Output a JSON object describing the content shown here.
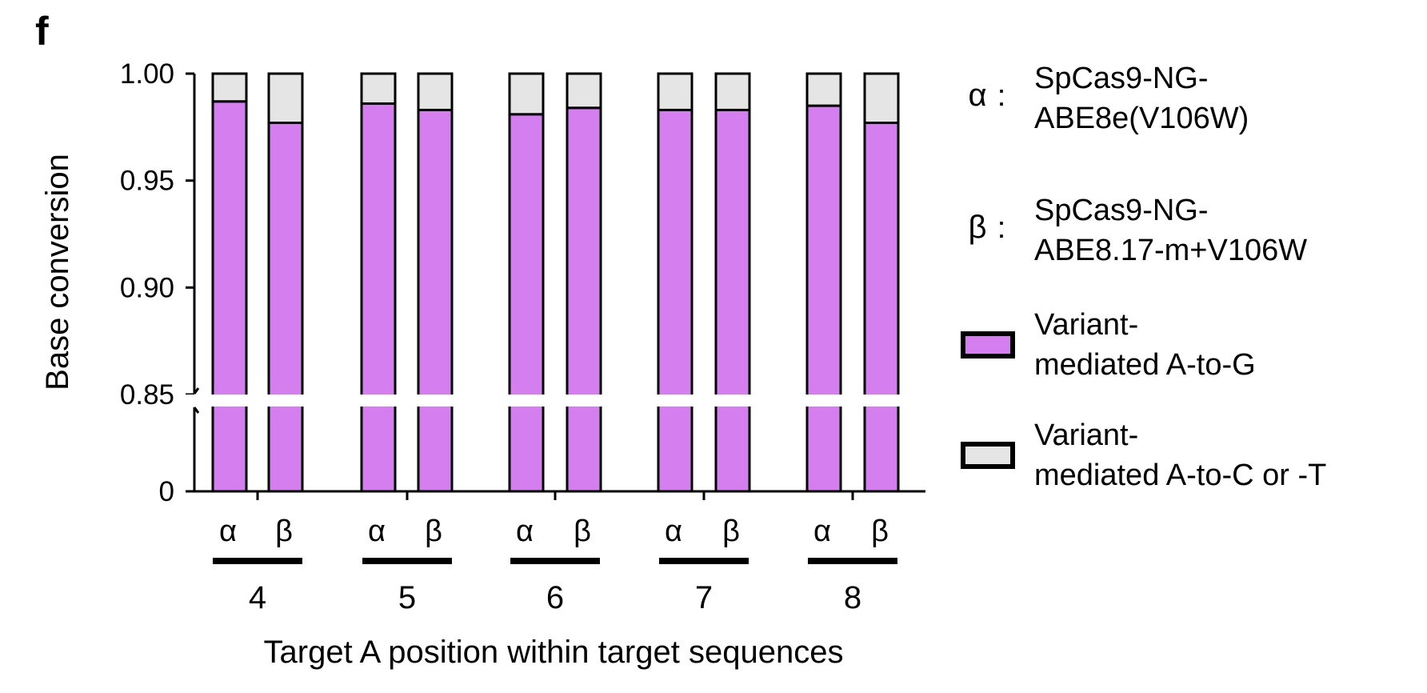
{
  "panel_label": "f",
  "colors": {
    "a_to_g": "#d57ef0",
    "a_to_ct": "#e5e5e5",
    "outline": "#000000"
  },
  "chart_data": {
    "type": "bar",
    "stacked": true,
    "title": "",
    "ylabel": "Base conversion",
    "xlabel": "Target A position within target sequences",
    "y_axis": {
      "broken": true,
      "lower_segment": [
        0,
        0.85
      ],
      "upper_segment": [
        0.85,
        1.0
      ],
      "tick_labels": [
        "0",
        "0.85",
        "0.90",
        "0.95",
        "1.00"
      ],
      "ticks": [
        0,
        0.85,
        0.9,
        0.95,
        1.0
      ]
    },
    "groups": [
      "4",
      "5",
      "6",
      "7",
      "8"
    ],
    "group_members": [
      "α",
      "β"
    ],
    "series": [
      {
        "name": "Variant-mediated A-to-G",
        "values": [
          [
            0.987,
            0.977
          ],
          [
            0.986,
            0.983
          ],
          [
            0.981,
            0.984
          ],
          [
            0.983,
            0.983
          ],
          [
            0.985,
            0.977
          ]
        ]
      },
      {
        "name": "Variant-mediated A-to-C or -T",
        "values": [
          [
            0.013,
            0.023
          ],
          [
            0.014,
            0.017
          ],
          [
            0.019,
            0.016
          ],
          [
            0.017,
            0.017
          ],
          [
            0.015,
            0.023
          ]
        ]
      }
    ],
    "legend": {
      "placement": "right",
      "definitions": [
        {
          "symbol": "α",
          "separator": ":",
          "lines": [
            "SpCas9-NG-",
            "ABE8e(V106W)"
          ]
        },
        {
          "symbol": "β",
          "separator": ":",
          "lines": [
            "SpCas9-NG-",
            "ABE8.17-m+V106W"
          ]
        }
      ],
      "entries": [
        {
          "lines": [
            "Variant-",
            "mediated A-to-G"
          ]
        },
        {
          "lines": [
            "Variant-",
            "mediated A-to-C or -T"
          ]
        }
      ]
    }
  }
}
